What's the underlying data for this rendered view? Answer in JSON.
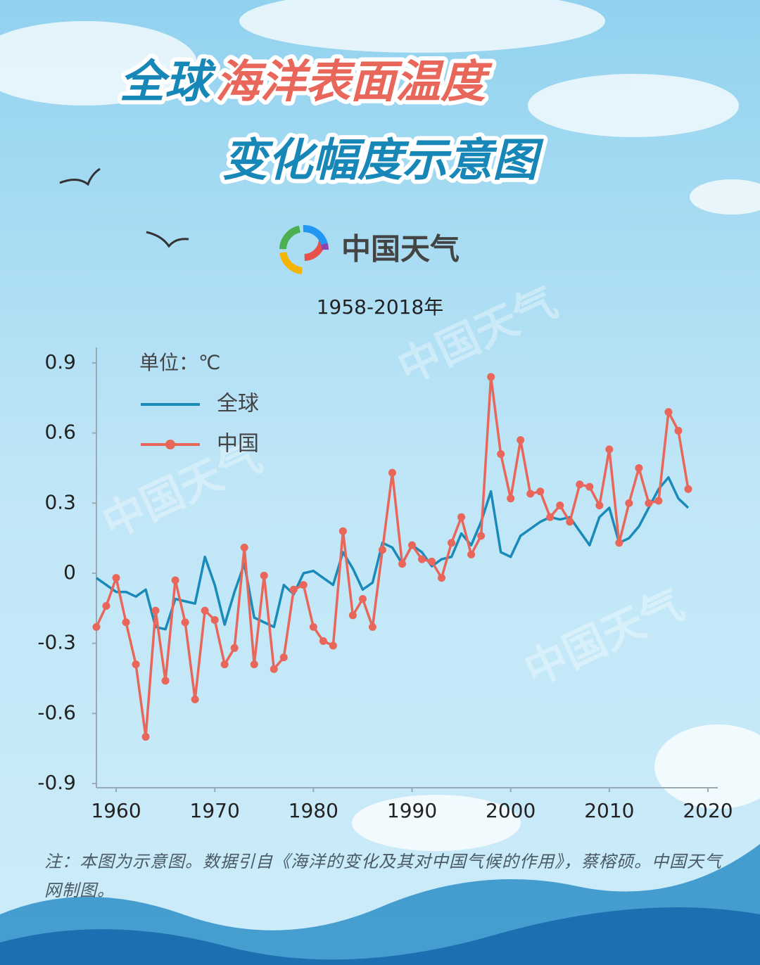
{
  "chart_data": {
    "type": "line",
    "title": [
      "全球",
      "海洋表面温度",
      "变化幅度示意图"
    ],
    "brand": "中国天气",
    "subtitle": "1958-2018年",
    "unit_label": "单位：℃",
    "note": "注：本图为示意图。数据引自《海洋的变化及其对中国气候的作用》，蔡榕硕。中国天气网制图。",
    "x": [
      1958,
      1959,
      1960,
      1961,
      1962,
      1963,
      1964,
      1965,
      1966,
      1967,
      1968,
      1969,
      1970,
      1971,
      1972,
      1973,
      1974,
      1975,
      1976,
      1977,
      1978,
      1979,
      1980,
      1981,
      1982,
      1983,
      1984,
      1985,
      1986,
      1987,
      1988,
      1989,
      1990,
      1991,
      1992,
      1993,
      1994,
      1995,
      1996,
      1997,
      1998,
      1999,
      2000,
      2001,
      2002,
      2003,
      2004,
      2005,
      2006,
      2007,
      2008,
      2009,
      2010,
      2011,
      2012,
      2013,
      2014,
      2015,
      2016,
      2017,
      2018
    ],
    "series": [
      {
        "name": "全球",
        "color": "#1a8ab8",
        "markers": false,
        "values": [
          -0.02,
          -0.05,
          -0.08,
          -0.08,
          -0.1,
          -0.07,
          -0.23,
          -0.24,
          -0.11,
          -0.12,
          -0.13,
          0.07,
          -0.05,
          -0.22,
          -0.08,
          0.04,
          -0.19,
          -0.21,
          -0.23,
          -0.05,
          -0.09,
          0.0,
          0.01,
          -0.02,
          -0.05,
          0.09,
          0.02,
          -0.07,
          -0.04,
          0.13,
          0.11,
          0.04,
          0.12,
          0.09,
          0.03,
          0.06,
          0.07,
          0.17,
          0.12,
          0.22,
          0.35,
          0.09,
          0.07,
          0.16,
          0.19,
          0.22,
          0.24,
          0.23,
          0.24,
          0.18,
          0.12,
          0.24,
          0.28,
          0.13,
          0.15,
          0.2,
          0.28,
          0.36,
          0.41,
          0.32,
          0.28
        ]
      },
      {
        "name": "中国",
        "color": "#e8665a",
        "markers": true,
        "values": [
          -0.23,
          -0.14,
          -0.02,
          -0.21,
          -0.39,
          -0.7,
          -0.16,
          -0.46,
          -0.03,
          -0.21,
          -0.54,
          -0.16,
          -0.2,
          -0.39,
          -0.32,
          0.11,
          -0.39,
          -0.01,
          -0.41,
          -0.36,
          -0.07,
          -0.05,
          -0.23,
          -0.29,
          -0.31,
          0.18,
          -0.18,
          -0.11,
          -0.23,
          0.1,
          0.43,
          0.04,
          0.12,
          0.06,
          0.05,
          -0.02,
          0.13,
          0.24,
          0.08,
          0.16,
          0.84,
          0.51,
          0.32,
          0.57,
          0.34,
          0.35,
          0.24,
          0.29,
          0.22,
          0.38,
          0.37,
          0.29,
          0.53,
          0.13,
          0.3,
          0.45,
          0.3,
          0.31,
          0.69,
          0.61,
          0.36
        ]
      }
    ],
    "xlim": [
      1958,
      2020
    ],
    "xticks": [
      1960,
      1970,
      1980,
      1990,
      2000,
      2010,
      2020
    ],
    "ylim": [
      -0.9,
      0.9
    ],
    "yticks": [
      0.9,
      0.6,
      0.3,
      0,
      -0.3,
      -0.6,
      -0.9
    ],
    "grid": false
  }
}
